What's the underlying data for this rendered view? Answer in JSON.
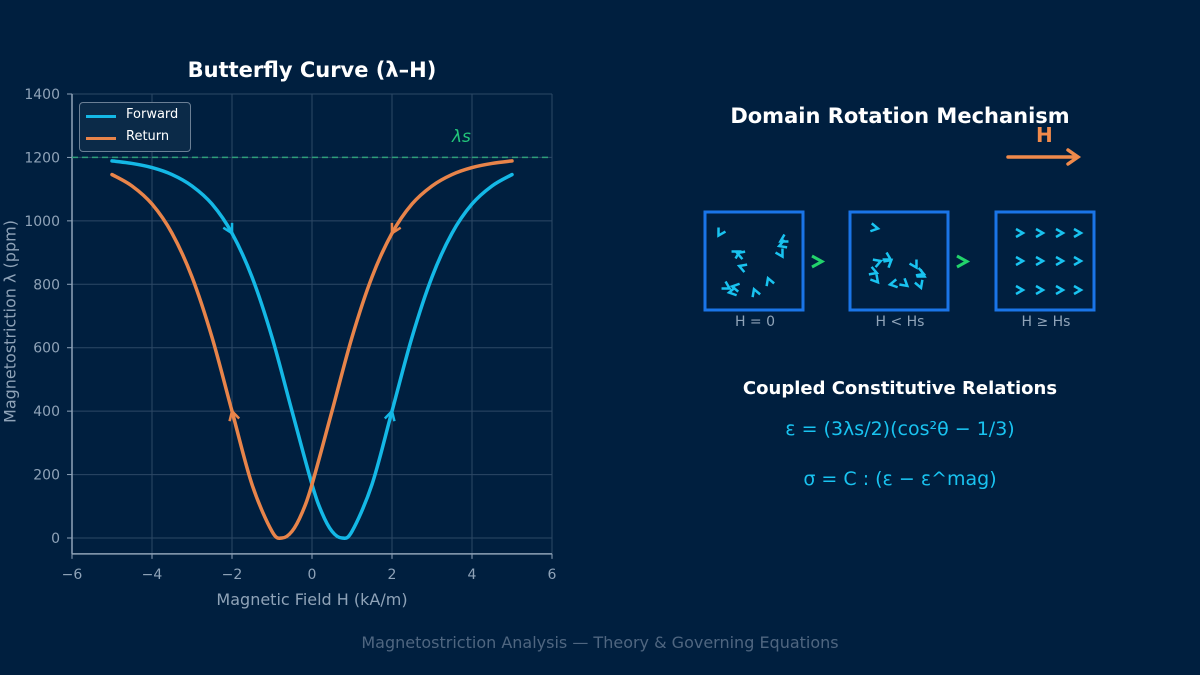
{
  "chart_data": {
    "type": "line",
    "title": "Butterfly Curve  (λ–H)",
    "xlabel": "Magnetic Field  H  (kA/m)",
    "ylabel": "Magnetostriction λ  (ppm)",
    "xlim": [
      -6,
      6
    ],
    "ylim": [
      -50,
      1400
    ],
    "xticks": [
      -6,
      -4,
      -2,
      0,
      2,
      4,
      6
    ],
    "xtick_labels": [
      "−6",
      "−4",
      "−2",
      "0",
      "2",
      "4",
      "6"
    ],
    "yticks": [
      0,
      200,
      400,
      600,
      800,
      1000,
      1200,
      1400
    ],
    "grid": true,
    "legend_position": "top-left",
    "saturation_line": {
      "y": 1200,
      "label": "λs",
      "color": "#2e9e7a"
    },
    "series": [
      {
        "name": "Forward",
        "color": "#14b8e6",
        "x": [
          -5,
          -4.5,
          -4,
          -3.5,
          -3,
          -2.5,
          -2,
          -1.5,
          -1,
          -0.5,
          0,
          0.25,
          0.5,
          0.75,
          1,
          1.5,
          2,
          2.5,
          3,
          3.5,
          4,
          4.5,
          5
        ],
        "y": [
          1189,
          1181,
          1168,
          1146,
          1110,
          1053,
          961,
          823,
          633,
          400,
          169,
          79,
          21,
          0,
          21,
          169,
          400,
          633,
          823,
          961,
          1053,
          1110,
          1146
        ],
        "direction_arrows": [
          {
            "x": -2,
            "dir": "down"
          },
          {
            "x": 2,
            "dir": "up"
          }
        ]
      },
      {
        "name": "Return",
        "color": "#e8844a",
        "x": [
          -5,
          -4.5,
          -4,
          -3.5,
          -3,
          -2.5,
          -2,
          -1.5,
          -1,
          -0.75,
          -0.5,
          -0.25,
          0,
          0.5,
          1,
          1.5,
          2,
          2.5,
          3,
          3.5,
          4,
          4.5,
          5
        ],
        "y": [
          1146,
          1110,
          1053,
          961,
          823,
          633,
          400,
          169,
          21,
          0,
          21,
          79,
          169,
          400,
          633,
          823,
          961,
          1053,
          1110,
          1146,
          1168,
          1181,
          1189
        ],
        "direction_arrows": [
          {
            "x": -2,
            "dir": "up"
          },
          {
            "x": 2,
            "dir": "down"
          }
        ]
      }
    ]
  },
  "mechanism": {
    "title": "Domain Rotation Mechanism",
    "field_label": "H",
    "field_color": "#f08a4b",
    "box_color": "#1a75e8",
    "domain_color": "#19c3f0",
    "step_arrow_color": "#22d36b",
    "stages": [
      {
        "label": "H = 0",
        "angles": [
          120,
          -30,
          200,
          150,
          60,
          -110,
          30,
          170,
          250,
          200,
          190,
          160
        ]
      },
      {
        "label": "H < Hs",
        "angles": [
          10,
          -20,
          30,
          20,
          50,
          170,
          40,
          60,
          20,
          70,
          30,
          -40
        ]
      },
      {
        "label": "H ≥ Hs",
        "angles": [
          0,
          0,
          0,
          0,
          0,
          0,
          0,
          0,
          0,
          0,
          0,
          0
        ]
      }
    ]
  },
  "relations": {
    "title": "Coupled Constitutive Relations",
    "eq1": "ε = (3λs/2)(cos²θ − 1/3)",
    "eq2": "σ = C : (ε − ε^mag)"
  },
  "footer": "Magnetostriction Analysis — Theory & Governing Equations"
}
